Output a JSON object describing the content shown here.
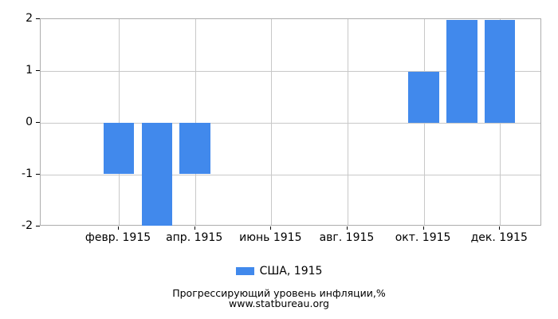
{
  "chart_data": {
    "type": "bar",
    "title": "Прогрессирующий уровень инфляции,%",
    "subtitle": "www.statbureau.org",
    "legend": [
      {
        "label": "США, 1915",
        "color": "#4189ec"
      }
    ],
    "legend_position": "bottom",
    "year": "1915",
    "months": [
      1,
      2,
      3,
      4,
      5,
      6,
      7,
      8,
      9,
      10,
      11,
      12
    ],
    "series": [
      {
        "name": "США, 1915",
        "color": "#4189ec",
        "values": [
          0,
          -0.99,
          -1.98,
          -0.99,
          0,
          0,
          0,
          0,
          0,
          0.99,
          1.98,
          1.98
        ]
      }
    ],
    "x_tick_month_indices": [
      1,
      3,
      5,
      7,
      9,
      11
    ],
    "x_tick_labels": [
      "февр. 1915",
      "апр. 1915",
      "июнь 1915",
      "авг. 1915",
      "окт. 1915",
      "дек. 1915"
    ],
    "yticks": [
      2,
      1,
      0,
      -1,
      -2
    ],
    "ylim": [
      -2,
      2
    ],
    "grid": true,
    "colors": {
      "grid": "#c8c8c8",
      "plot_border": "#adadad",
      "tick": "#000000",
      "text": "#000000",
      "background": "#ffffff"
    }
  }
}
